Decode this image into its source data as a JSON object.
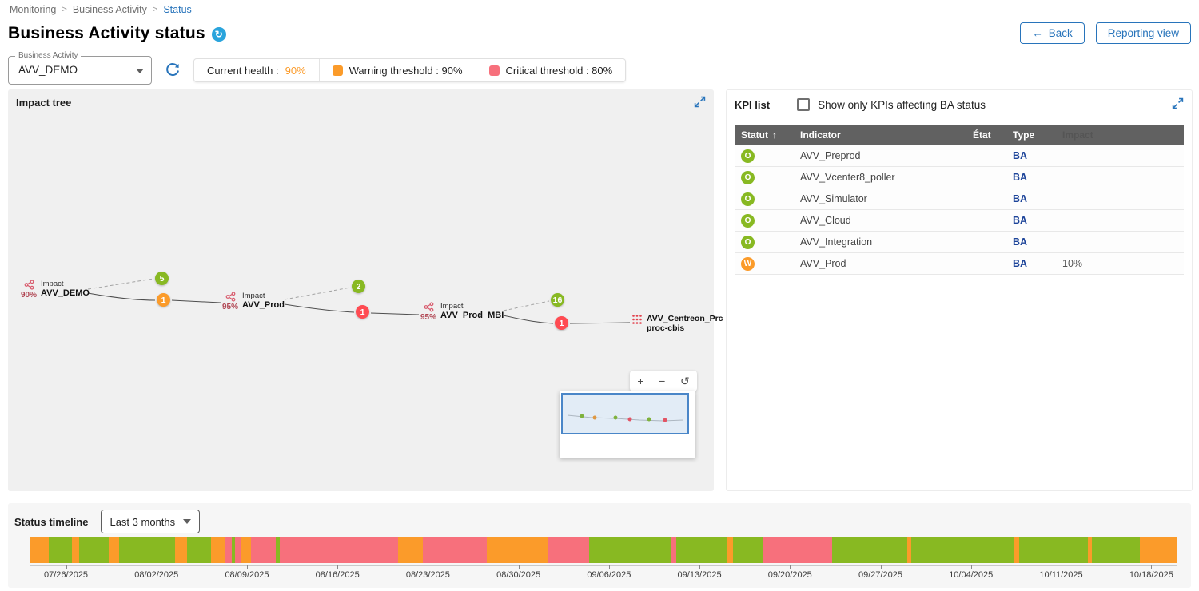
{
  "breadcrumb": {
    "items": [
      "Monitoring",
      "Business Activity",
      "Status"
    ]
  },
  "header": {
    "title": "Business Activity status",
    "back_button": "Back",
    "back_arrow": "←",
    "reporting_button": "Reporting view"
  },
  "controls": {
    "ba_label": "Business Activity",
    "ba_value": "AVV_DEMO",
    "current_health_label": "Current health :",
    "current_health_value": "90%",
    "warning_threshold_label": "Warning threshold : 90%",
    "critical_threshold_label": "Critical threshold : 80%"
  },
  "impact_tree": {
    "title": "Impact tree",
    "nodes": [
      {
        "percent": "90%",
        "kicker": "Impact",
        "name": "AVV_DEMO"
      },
      {
        "percent": "95%",
        "kicker": "Impact",
        "name": "AVV_Prod"
      },
      {
        "percent": "95%",
        "kicker": "Impact",
        "name": "AVV_Prod_MBI"
      },
      {
        "name_line1": "AVV_Centreon_Prc",
        "name_line2": "proc-cbis"
      }
    ],
    "badges": [
      {
        "value": "5",
        "status": "ok"
      },
      {
        "value": "1",
        "status": "warning"
      },
      {
        "value": "2",
        "status": "ok"
      },
      {
        "value": "1",
        "status": "critical"
      },
      {
        "value": "16",
        "status": "ok"
      },
      {
        "value": "1",
        "status": "critical"
      }
    ],
    "zoom": {
      "in": "+",
      "out": "−",
      "reset": "↺"
    }
  },
  "kpi_list": {
    "title": "KPI list",
    "filter_label": "Show only KPIs affecting BA status",
    "columns": [
      "Statut",
      "Indicator",
      "État",
      "Type",
      "Impact"
    ],
    "sort_icon": "↑",
    "rows": [
      {
        "status": "O",
        "severity": "ok",
        "indicator": "AVV_Preprod",
        "etat": "",
        "type": "BA",
        "impact": ""
      },
      {
        "status": "O",
        "severity": "ok",
        "indicator": "AVV_Vcenter8_poller",
        "etat": "",
        "type": "BA",
        "impact": ""
      },
      {
        "status": "O",
        "severity": "ok",
        "indicator": "AVV_Simulator",
        "etat": "",
        "type": "BA",
        "impact": ""
      },
      {
        "status": "O",
        "severity": "ok",
        "indicator": "AVV_Cloud",
        "etat": "",
        "type": "BA",
        "impact": ""
      },
      {
        "status": "O",
        "severity": "ok",
        "indicator": "AVV_Integration",
        "etat": "",
        "type": "BA",
        "impact": ""
      },
      {
        "status": "W",
        "severity": "warning",
        "indicator": "AVV_Prod",
        "etat": "",
        "type": "BA",
        "impact": "10%"
      }
    ]
  },
  "timeline": {
    "title": "Status timeline",
    "range_value": "Last 3 months",
    "dates": [
      "07/26/2025",
      "08/02/2025",
      "08/09/2025",
      "08/16/2025",
      "08/23/2025",
      "08/30/2025",
      "09/06/2025",
      "09/13/2025",
      "09/20/2025",
      "09/27/2025",
      "10/04/2025",
      "10/11/2025",
      "10/18/2025"
    ],
    "segments": [
      {
        "c": "warning",
        "w": 1.7
      },
      {
        "c": "ok",
        "w": 2.0
      },
      {
        "c": "warning",
        "w": 0.6
      },
      {
        "c": "ok",
        "w": 2.6
      },
      {
        "c": "warning",
        "w": 0.9
      },
      {
        "c": "ok",
        "w": 4.9
      },
      {
        "c": "warning",
        "w": 1.0
      },
      {
        "c": "ok",
        "w": 2.1
      },
      {
        "c": "warning",
        "w": 1.2
      },
      {
        "c": "critical",
        "w": 0.6
      },
      {
        "c": "ok",
        "w": 0.3
      },
      {
        "c": "critical",
        "w": 0.6
      },
      {
        "c": "warning",
        "w": 0.8
      },
      {
        "c": "critical",
        "w": 2.2
      },
      {
        "c": "ok",
        "w": 0.3
      },
      {
        "c": "critical",
        "w": 10.3
      },
      {
        "c": "warning",
        "w": 2.2
      },
      {
        "c": "critical",
        "w": 5.6
      },
      {
        "c": "warning",
        "w": 5.3
      },
      {
        "c": "critical",
        "w": 3.6
      },
      {
        "c": "ok",
        "w": 7.2
      },
      {
        "c": "critical",
        "w": 0.4
      },
      {
        "c": "ok",
        "w": 4.4
      },
      {
        "c": "warning",
        "w": 0.5
      },
      {
        "c": "ok",
        "w": 2.6
      },
      {
        "c": "critical",
        "w": 6.1
      },
      {
        "c": "ok",
        "w": 6.5
      },
      {
        "c": "warning",
        "w": 0.4
      },
      {
        "c": "ok",
        "w": 9.0
      },
      {
        "c": "warning",
        "w": 0.4
      },
      {
        "c": "ok",
        "w": 6.0
      },
      {
        "c": "warning",
        "w": 0.3
      },
      {
        "c": "ok",
        "w": 4.2
      },
      {
        "c": "warning",
        "w": 3.2
      }
    ]
  },
  "colors": {
    "ok": "#88B922",
    "warning": "#FB9B2A",
    "critical": "#F7707C",
    "badge_critical": "#FF4B52",
    "accent": "#2874BB"
  }
}
